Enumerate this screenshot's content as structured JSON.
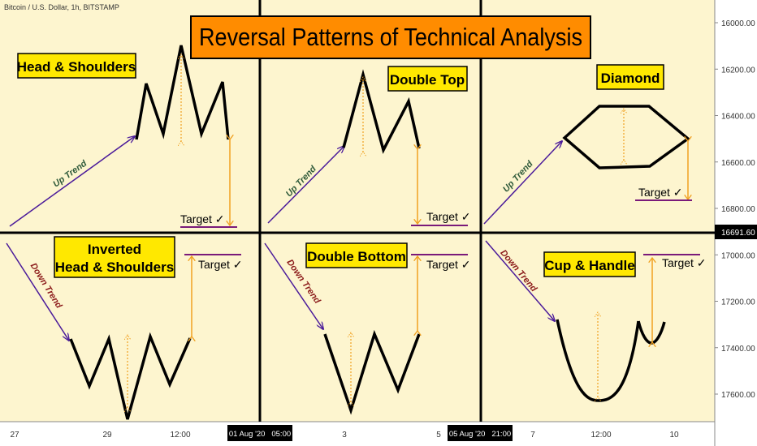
{
  "symbol_header": "Bitcoin / U.S. Dollar, 1h, BITSTAMP",
  "title": "Reversal Patterns of Technical Analysis",
  "panels": [
    {
      "name": "Head & Shoulders",
      "trend": "Up Trend",
      "target": "Target ✓"
    },
    {
      "name": "Double Top",
      "trend": "Up Trend",
      "target": "Target ✓"
    },
    {
      "name": "Diamond",
      "trend": "Up Trend",
      "target": "Target ✓"
    },
    {
      "name_line1": "Inverted",
      "name_line2": "Head & Shoulders",
      "trend": "Down Trend",
      "target": "Target ✓"
    },
    {
      "name": "Double Bottom",
      "trend": "Down Trend",
      "target": "Target ✓"
    },
    {
      "name": "Cup & Handle",
      "trend": "Down Trend",
      "target": "Target ✓"
    }
  ],
  "price_axis": {
    "ticks": [
      "17600.00",
      "17400.00",
      "17200.00",
      "17000.00",
      "16800.00",
      "16600.00",
      "16400.00",
      "16200.00",
      "16000.00"
    ],
    "current_price": "16691.60"
  },
  "time_axis": {
    "ticks": [
      "27",
      "29",
      "12:00",
      "3",
      "5",
      "7",
      "12:00",
      "10"
    ],
    "highlighted": [
      "01 Aug '20   05:00",
      "05 Aug '20   21:00"
    ]
  },
  "colors": {
    "background": "#fdf5cf",
    "label_fill": "#ffe800",
    "title_fill": "#ff8c00",
    "trend_line": "#4a1a9a",
    "up_trend_text": "#2f5a3a",
    "down_trend_text": "#8b1a1a",
    "target_arrow": "#f0a020",
    "target_line": "#7a1a7a"
  },
  "chart_data": {
    "type": "line",
    "title": "Reversal Patterns of Technical Analysis",
    "ylabel": "",
    "ylim": [
      15900,
      17700
    ],
    "y_ticks": [
      16000,
      16200,
      16400,
      16600,
      16800,
      17000,
      17200,
      17400,
      17600
    ],
    "current_price": 16691.6,
    "x_tick_labels": [
      "27",
      "29",
      "12:00",
      "01 Aug '20 05:00",
      "3",
      "5",
      "05 Aug '20 21:00",
      "7",
      "12:00",
      "10"
    ],
    "grid": false
  }
}
